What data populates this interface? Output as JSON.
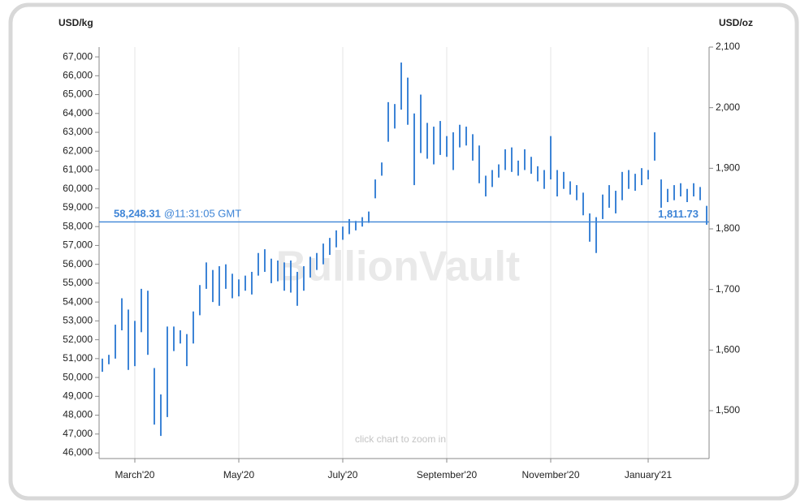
{
  "chart_data": {
    "type": "range_bar",
    "y_label": "USD/kg",
    "y2_label": "USD/oz",
    "watermark": "BullionVault",
    "note": "click chart to zoom in",
    "color": "#3d84d6",
    "categories": [
      null,
      null,
      null,
      null,
      null,
      "March'20",
      null,
      null,
      null,
      null,
      null,
      null,
      null,
      null,
      null,
      null,
      null,
      null,
      null,
      null,
      null,
      "May'20",
      null,
      null,
      null,
      null,
      null,
      null,
      null,
      null,
      null,
      null,
      null,
      null,
      null,
      null,
      null,
      "July'20",
      null,
      null,
      null,
      null,
      null,
      null,
      null,
      null,
      null,
      null,
      null,
      null,
      null,
      null,
      null,
      "September'20",
      null,
      null,
      null,
      null,
      null,
      null,
      null,
      null,
      null,
      null,
      null,
      null,
      null,
      null,
      null,
      "November'20",
      null,
      null,
      null,
      null,
      null,
      null,
      null,
      null,
      null,
      null,
      null,
      null,
      null,
      null,
      "January'21",
      null,
      null,
      null,
      null,
      null,
      null,
      null,
      null,
      null
    ],
    "values": [
      [
        50300,
        51000
      ],
      [
        50700,
        51200
      ],
      [
        51000,
        52800
      ],
      [
        52500,
        54200
      ],
      [
        50400,
        53600
      ],
      [
        50600,
        53000
      ],
      [
        52400,
        54700
      ],
      [
        51200,
        54600
      ],
      [
        47500,
        50500
      ],
      [
        46900,
        49100
      ],
      [
        47900,
        52700
      ],
      [
        51400,
        52700
      ],
      [
        51800,
        52500
      ],
      [
        50600,
        52300
      ],
      [
        51800,
        53500
      ],
      [
        53300,
        54900
      ],
      [
        54700,
        56100
      ],
      [
        54000,
        55700
      ],
      [
        53800,
        55900
      ],
      [
        54700,
        56000
      ],
      [
        54200,
        55500
      ],
      [
        54300,
        55200
      ],
      [
        54600,
        55400
      ],
      [
        54400,
        55600
      ],
      [
        55400,
        56600
      ],
      [
        55600,
        56800
      ],
      [
        55000,
        56300
      ],
      [
        55100,
        56200
      ],
      [
        54600,
        56100
      ],
      [
        54500,
        56200
      ],
      [
        53800,
        55600
      ],
      [
        54600,
        55900
      ],
      [
        55300,
        56400
      ],
      [
        55700,
        56600
      ],
      [
        56000,
        57100
      ],
      [
        56500,
        57400
      ],
      [
        56900,
        57800
      ],
      [
        57300,
        58000
      ],
      [
        57600,
        58400
      ],
      [
        57800,
        58300
      ],
      [
        58000,
        58500
      ],
      [
        58200,
        58800
      ],
      [
        59500,
        60500
      ],
      [
        60700,
        61400
      ],
      [
        62500,
        64600
      ],
      [
        63200,
        64500
      ],
      [
        64200,
        66700
      ],
      [
        63400,
        65900
      ],
      [
        60200,
        64000
      ],
      [
        61900,
        65000
      ],
      [
        61600,
        63500
      ],
      [
        61300,
        63300
      ],
      [
        61800,
        63600
      ],
      [
        61700,
        62800
      ],
      [
        61000,
        63000
      ],
      [
        62200,
        63400
      ],
      [
        62300,
        63300
      ],
      [
        61500,
        62900
      ],
      [
        60300,
        62300
      ],
      [
        59600,
        60700
      ],
      [
        60100,
        61000
      ],
      [
        60600,
        61300
      ],
      [
        61000,
        62100
      ],
      [
        60900,
        62200
      ],
      [
        60700,
        61500
      ],
      [
        61000,
        62100
      ],
      [
        60800,
        61700
      ],
      [
        60400,
        61200
      ],
      [
        60000,
        61000
      ],
      [
        60500,
        62800
      ],
      [
        59600,
        61000
      ],
      [
        60000,
        60900
      ],
      [
        59700,
        60400
      ],
      [
        59400,
        60200
      ],
      [
        58600,
        59800
      ],
      [
        57200,
        58700
      ],
      [
        56600,
        58500
      ],
      [
        58400,
        59700
      ],
      [
        59000,
        60200
      ],
      [
        58700,
        59900
      ],
      [
        59400,
        60900
      ],
      [
        60000,
        61000
      ],
      [
        59900,
        60800
      ],
      [
        60200,
        61100
      ],
      [
        60500,
        61000
      ],
      [
        61500,
        63000
      ],
      [
        59000,
        60500
      ],
      [
        59300,
        60000
      ],
      [
        59400,
        60200
      ],
      [
        59600,
        60300
      ],
      [
        59300,
        60000
      ],
      [
        59600,
        60300
      ],
      [
        59400,
        60100
      ],
      [
        58100,
        59100
      ]
    ],
    "price_line": {
      "value": 58248.31,
      "label": "58,248.31",
      "time": "@11:31:05 GMT",
      "y2_label": "1,811.73"
    },
    "ylim": [
      45700,
      67520
    ],
    "yticks": [
      {
        "value": 46000,
        "label": "46,000"
      },
      {
        "value": 47000,
        "label": "47,000"
      },
      {
        "value": 48000,
        "label": "48,000"
      },
      {
        "value": 49000,
        "label": "49,000"
      },
      {
        "value": 50000,
        "label": "50,000"
      },
      {
        "value": 51000,
        "label": "51,000"
      },
      {
        "value": 52000,
        "label": "52,000"
      },
      {
        "value": 53000,
        "label": "53,000"
      },
      {
        "value": 54000,
        "label": "54,000"
      },
      {
        "value": 55000,
        "label": "55,000"
      },
      {
        "value": 56000,
        "label": "56,000"
      },
      {
        "value": 57000,
        "label": "57,000"
      },
      {
        "value": 58000,
        "label": "58,000"
      },
      {
        "value": 59000,
        "label": "59,000"
      },
      {
        "value": 60000,
        "label": "60,000"
      },
      {
        "value": 61000,
        "label": "61,000"
      },
      {
        "value": 62000,
        "label": "62,000"
      },
      {
        "value": 63000,
        "label": "63,000"
      },
      {
        "value": 64000,
        "label": "64,000"
      },
      {
        "value": 65000,
        "label": "65,000"
      },
      {
        "value": 66000,
        "label": "66,000"
      },
      {
        "value": 67000,
        "label": "67,000"
      }
    ],
    "y2lim": [
      1421,
      2100
    ],
    "y2ticks": [
      {
        "value": 1500,
        "label": "1,500"
      },
      {
        "value": 1600,
        "label": "1,600"
      },
      {
        "value": 1700,
        "label": "1,700"
      },
      {
        "value": 1800,
        "label": "1,800"
      },
      {
        "value": 1900,
        "label": "1,900"
      },
      {
        "value": 2000,
        "label": "2,000"
      },
      {
        "value": 2100,
        "label": "2,100"
      }
    ],
    "grid": true
  }
}
